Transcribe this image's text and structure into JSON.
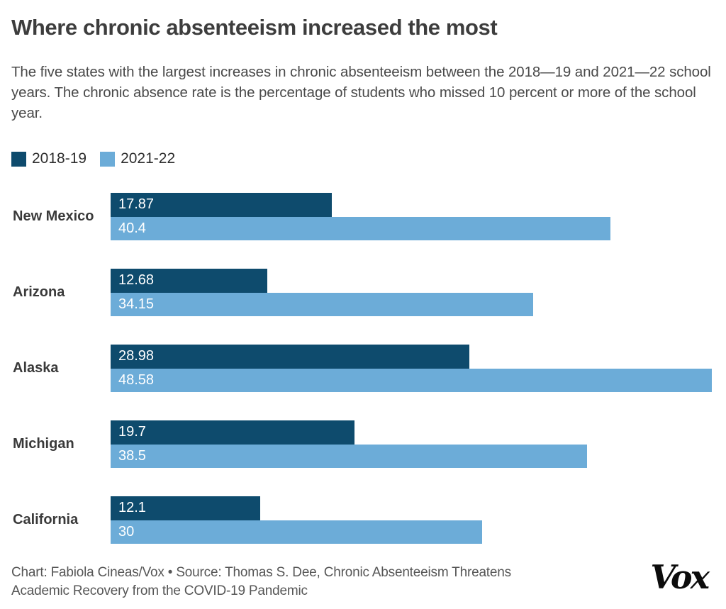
{
  "header": {
    "title": "Where chronic absenteeism increased the most",
    "subtitle": "The five states with the largest increases in chronic absenteeism between the 2018—19 and 2021—22 school years. The chronic absence rate is the percentage of students who missed 10 percent or more of the school year."
  },
  "chart_data": {
    "type": "bar",
    "orientation": "horizontal",
    "title": "Where chronic absenteeism increased the most",
    "categories": [
      "New Mexico",
      "Arizona",
      "Alaska",
      "Michigan",
      "California"
    ],
    "series": [
      {
        "name": "2018-19",
        "color": "#0e4b6d",
        "values": [
          17.87,
          12.68,
          28.98,
          19.7,
          12.1
        ]
      },
      {
        "name": "2021-22",
        "color": "#6cacd8",
        "values": [
          40.4,
          34.15,
          48.58,
          38.5,
          30
        ]
      }
    ],
    "xlim": [
      0,
      48.8
    ],
    "value_labels": "inside-left-white",
    "legend_position": "top-left",
    "grid": false,
    "axes_hidden": true
  },
  "footer": {
    "credit": "Chart: Fabiola Cineas/Vox • Source: Thomas S. Dee, Chronic Absenteeism Threatens Academic Recovery from the COVID-19 Pandemic",
    "logo_text": "Vox"
  },
  "colors": {
    "series_2018_19": "#0e4b6d",
    "series_2021_22": "#6cacd8",
    "title_text": "#3d3d3d",
    "subtitle_text": "#4a4a4a",
    "credit_text": "#565656",
    "background": "#ffffff"
  }
}
